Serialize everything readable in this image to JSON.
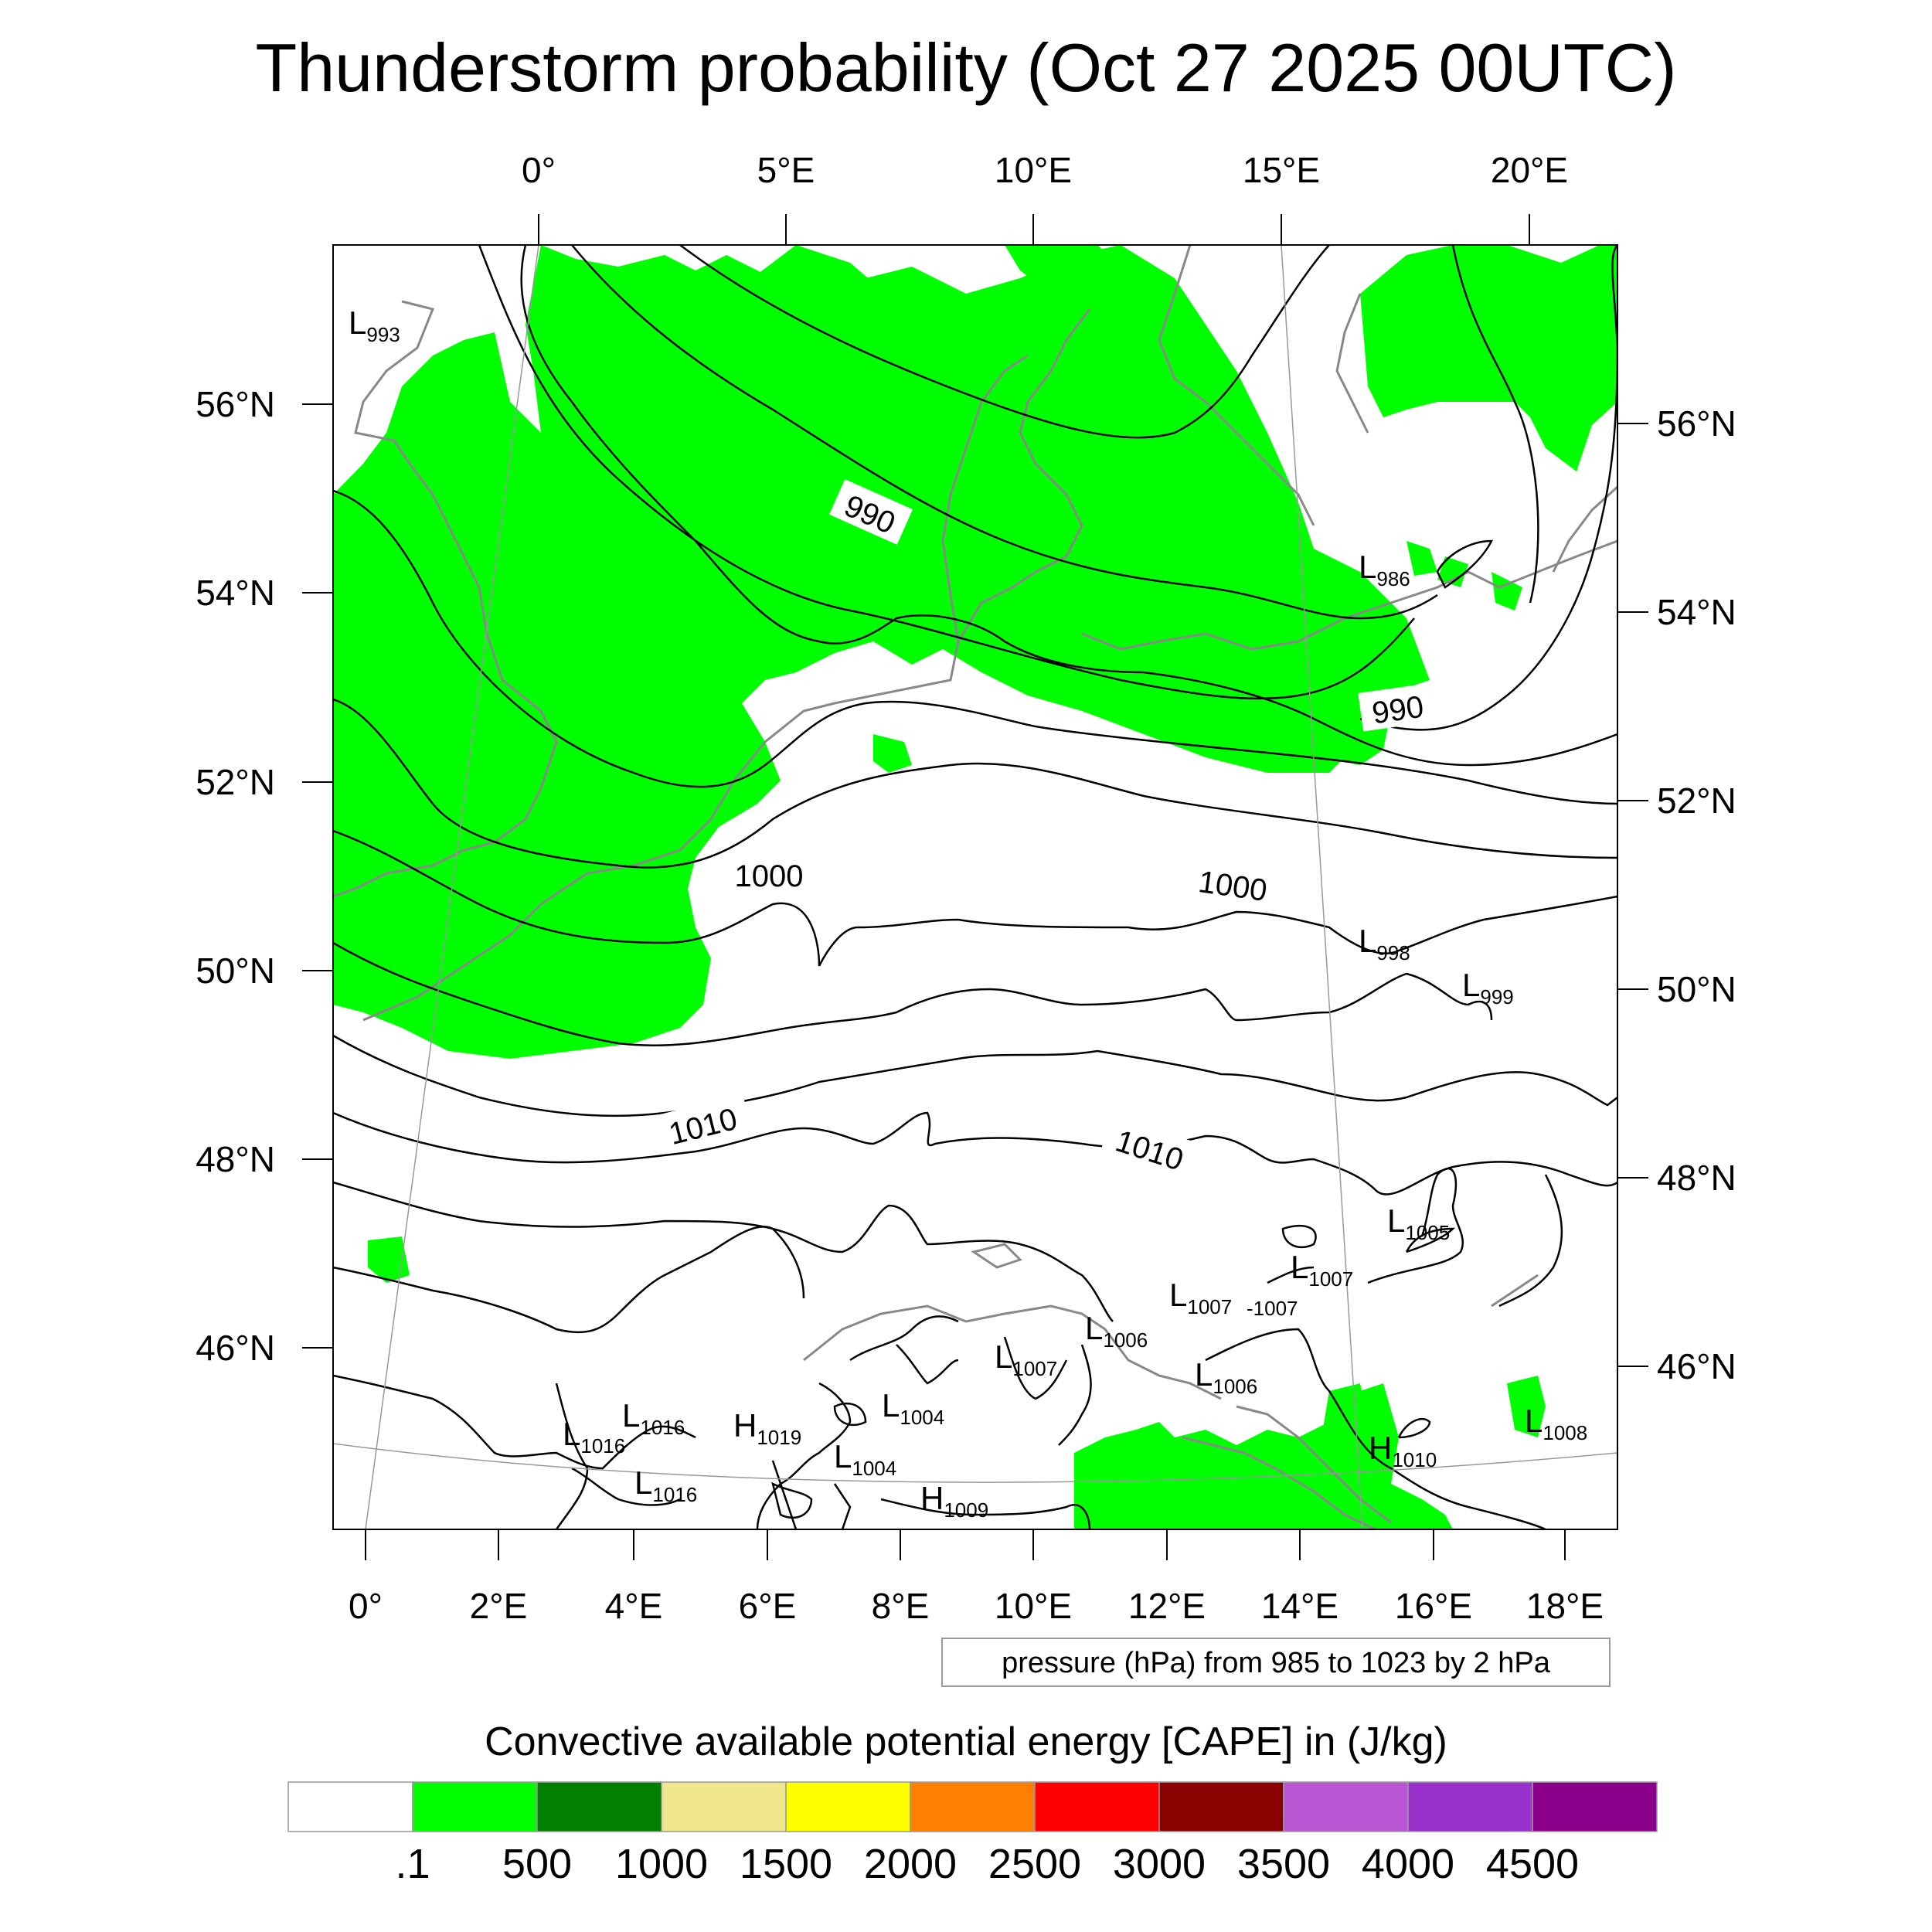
{
  "title": "Thunderstorm probability (Oct 27 2025 00UTC)",
  "map": {
    "top_lon_labels": [
      "0°",
      "5°E",
      "10°E",
      "15°E",
      "20°E"
    ],
    "bottom_lon_labels": [
      "0°",
      "2°E",
      "4°E",
      "6°E",
      "8°E",
      "10°E",
      "12°E",
      "14°E",
      "16°E",
      "18°E"
    ],
    "left_lat_labels": [
      "56°N",
      "54°N",
      "52°N",
      "50°N",
      "48°N",
      "46°N"
    ],
    "right_lat_labels": [
      "56°N",
      "54°N",
      "52°N",
      "50°N",
      "48°N",
      "46°N"
    ],
    "isobar_labels": [
      "990",
      "990",
      "1000",
      "1000",
      "1010",
      "1010"
    ],
    "pressure_centers": [
      {
        "type": "L",
        "value": "993"
      },
      {
        "type": "L",
        "value": "986"
      },
      {
        "type": "L",
        "value": "998"
      },
      {
        "type": "L",
        "value": "999"
      },
      {
        "type": "L",
        "value": "1005"
      },
      {
        "type": "L",
        "value": "1007"
      },
      {
        "type": "L",
        "value": "1007"
      },
      {
        "type": "L",
        "value": "1006"
      },
      {
        "type": "L",
        "value": "1007"
      },
      {
        "type": "L",
        "value": "1006"
      },
      {
        "type": "L",
        "value": "1004"
      },
      {
        "type": "L",
        "value": "1016"
      },
      {
        "type": "L",
        "value": "1016"
      },
      {
        "type": "L",
        "value": "1016"
      },
      {
        "type": "H",
        "value": "1019"
      },
      {
        "type": "L",
        "value": "1004"
      },
      {
        "type": "H",
        "value": "1009"
      },
      {
        "type": "H",
        "value": "1010"
      },
      {
        "type": "L",
        "value": "1008"
      }
    ],
    "stray_label": "-1007",
    "contour_note": "pressure (hPa) from 985 to 1023 by 2 hPa",
    "cape_color": "#00ff00",
    "isobar_color": "#000000",
    "coast_color": "#888888"
  },
  "colorbar": {
    "title": "Convective available potential energy [CAPE] in (J/kg)",
    "labels": [
      ".1",
      "500",
      "1000",
      "1500",
      "2000",
      "2500",
      "3000",
      "3500",
      "4000",
      "4500"
    ],
    "colors": [
      "#ffffff",
      "#00ff00",
      "#007f00",
      "#f0e68c",
      "#ffff00",
      "#ff8000",
      "#ff0000",
      "#8b0000",
      "#ba55d3",
      "#9932cc",
      "#8b008b"
    ]
  }
}
